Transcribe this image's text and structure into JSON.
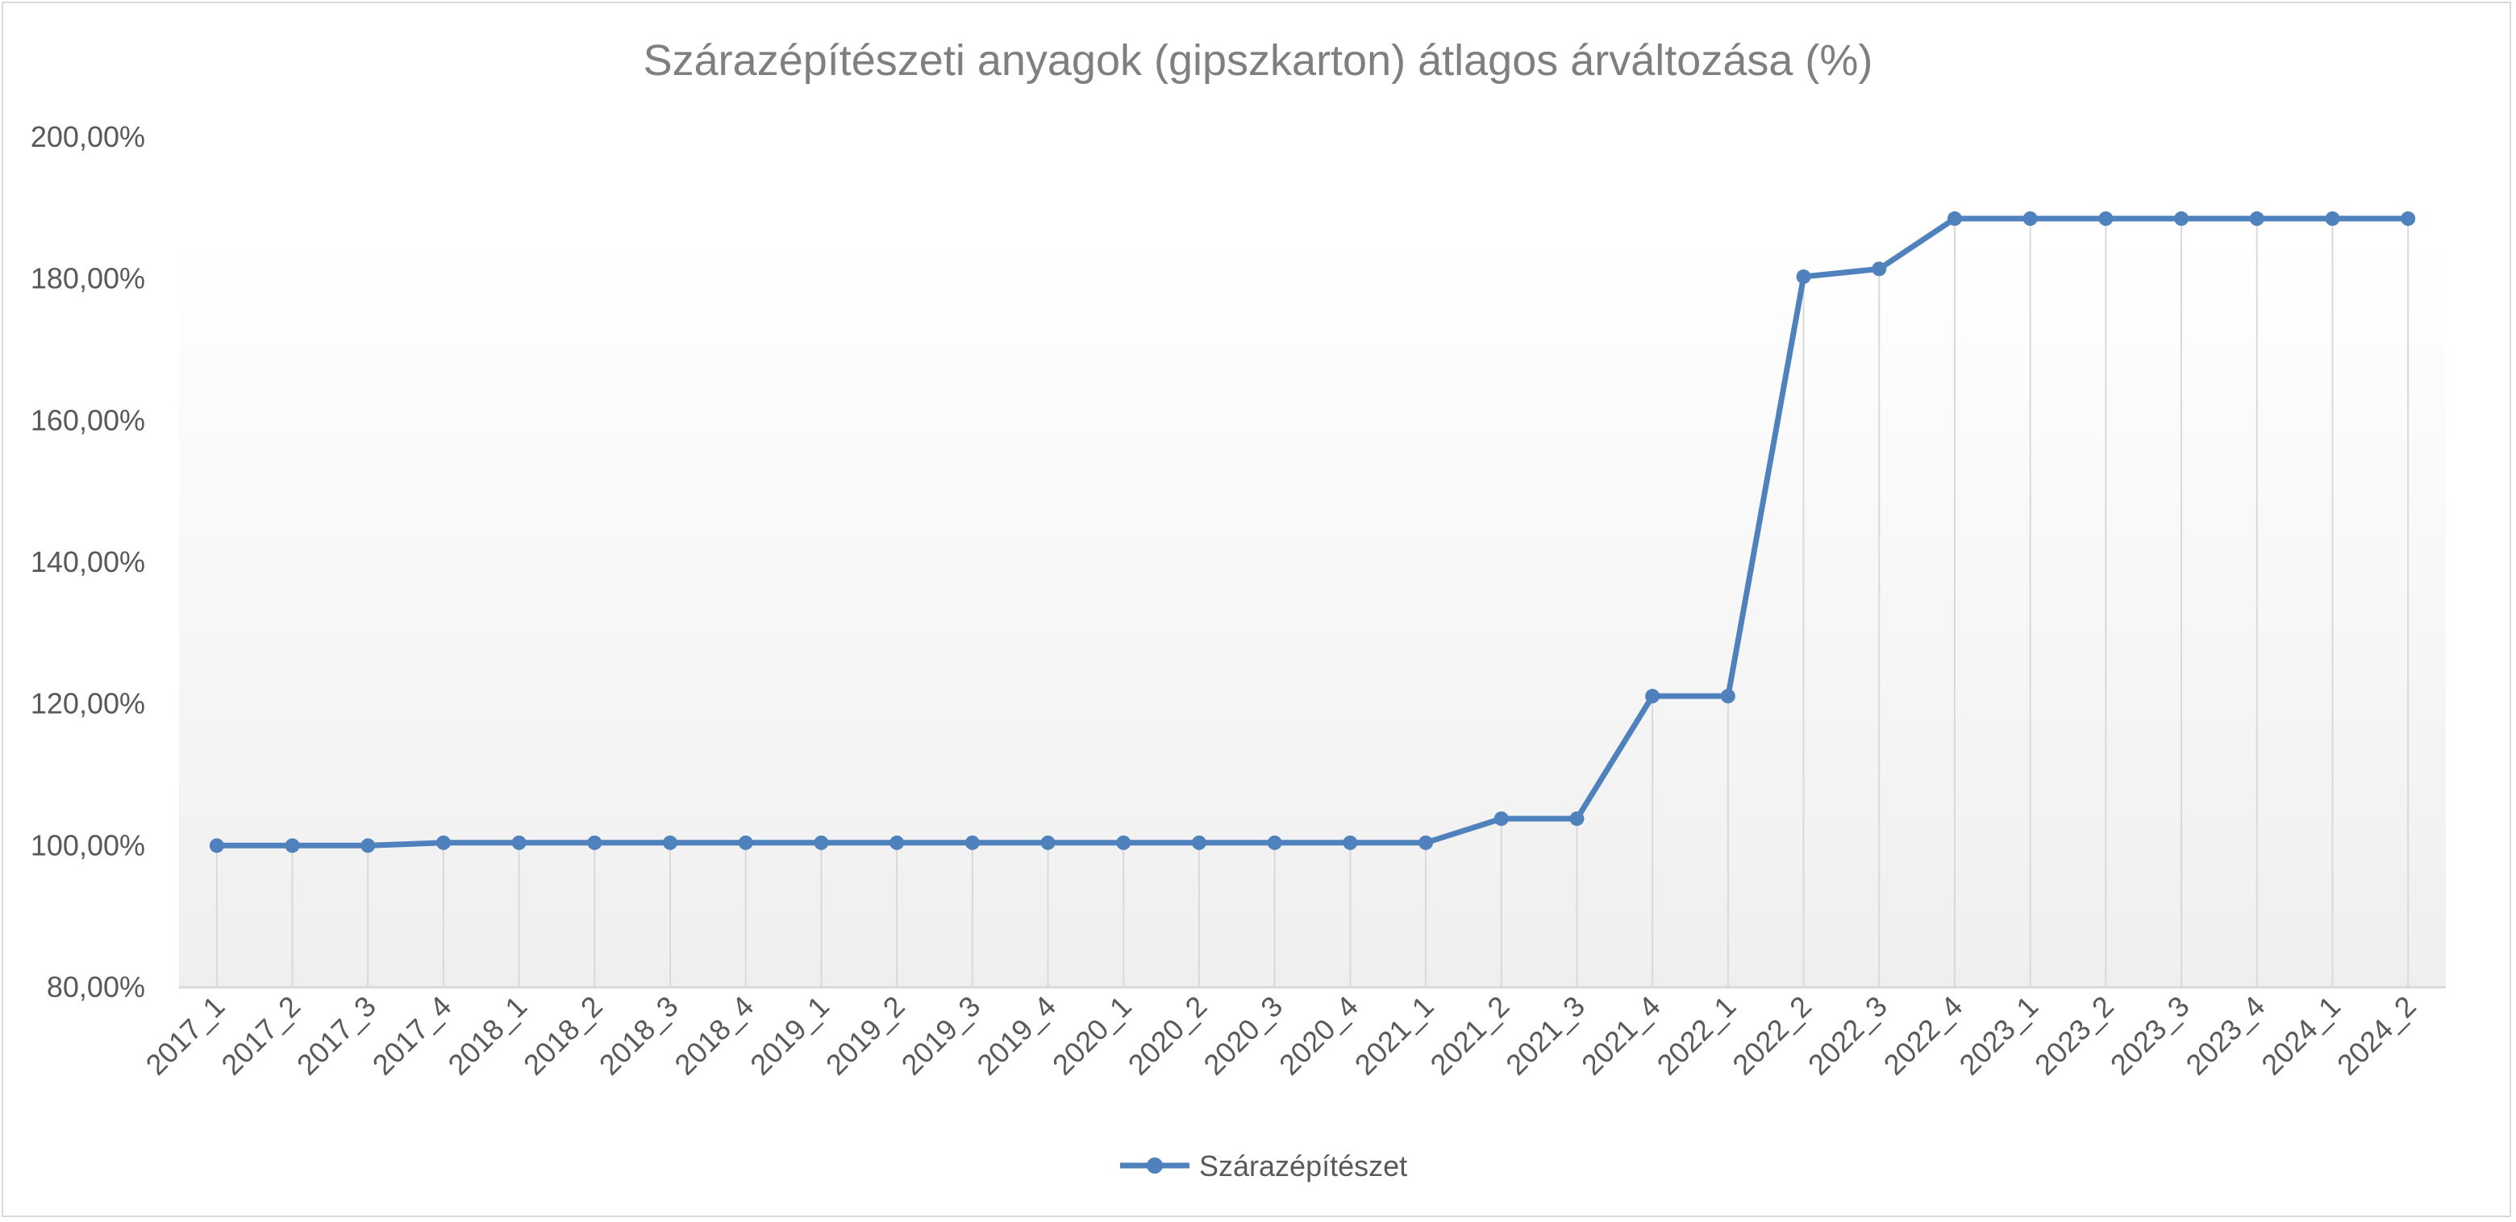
{
  "chart_data": {
    "type": "line",
    "title": "Szárazépítészeti anyagok (gipszkarton) átlagos árváltozása (%)",
    "xlabel": "",
    "ylabel": "",
    "categories": [
      "2017_1",
      "2017_2",
      "2017_3",
      "2017_4",
      "2018_1",
      "2018_2",
      "2018_3",
      "2018_4",
      "2019_1",
      "2019_2",
      "2019_3",
      "2019_4",
      "2020_1",
      "2020_2",
      "2020_3",
      "2020_4",
      "2021_1",
      "2021_2",
      "2021_3",
      "2021_4",
      "2022_1",
      "2022_2",
      "2022_3",
      "2022_4",
      "2023_1",
      "2023_2",
      "2023_3",
      "2023_4",
      "2024_1",
      "2024_2"
    ],
    "series": [
      {
        "name": "Szárazépítészet",
        "color": "#4f81bd",
        "values": [
          100.0,
          100.0,
          100.0,
          100.4,
          100.4,
          100.4,
          100.4,
          100.4,
          100.4,
          100.4,
          100.4,
          100.4,
          100.4,
          100.4,
          100.4,
          100.4,
          100.4,
          103.8,
          103.8,
          121.1,
          121.1,
          180.3,
          181.4,
          188.5,
          188.5,
          188.5,
          188.5,
          188.5,
          188.5,
          188.5
        ]
      }
    ],
    "ylim": [
      80,
      200
    ],
    "y_ticks": [
      80,
      100,
      120,
      140,
      160,
      180,
      200
    ],
    "y_tick_labels": [
      "80,00%",
      "100,00%",
      "120,00%",
      "140,00%",
      "160,00%",
      "180,00%",
      "200,00%"
    ],
    "drop_lines": true,
    "legend_position": "bottom",
    "colors": {
      "series": "#4f81bd",
      "drop_line": "#d9d9d9",
      "axis": "#d9d9d9",
      "title": "#7f7f7f",
      "text": "#595959"
    }
  }
}
